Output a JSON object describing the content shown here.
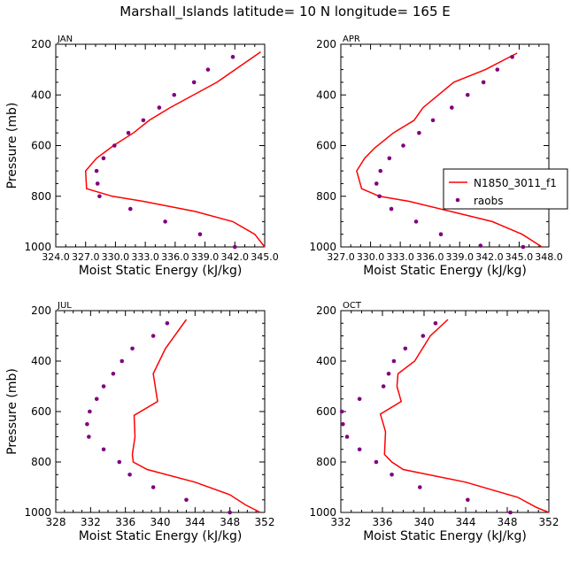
{
  "title": "Marshall_Islands  latitude= 10 N longitude= 165 E",
  "legend": {
    "model_label": "N1850_3011_f1",
    "obs_label": "raobs"
  },
  "colors": {
    "model": "#ff0000",
    "obs": "#800080",
    "axis": "#000000"
  },
  "chart_data": [
    {
      "type": "line",
      "panel": "JAN",
      "xlabel": "Moist Static Energy (kJ/kg)",
      "ylabel": "Pressure (mb)",
      "xlim": [
        324,
        345
      ],
      "ylim": [
        200,
        1000
      ],
      "xticks": [
        324,
        327,
        330,
        333,
        336,
        339,
        342,
        345
      ],
      "xtick_labels": [
        "324.0",
        "327.0",
        "330.0",
        "333.0",
        "336.0",
        "339.0",
        "342.0",
        "345.0"
      ],
      "yticks": [
        200,
        400,
        600,
        800,
        1000
      ],
      "ytick_labels": [
        "200",
        "400",
        "600",
        "800",
        "1000"
      ],
      "series": [
        {
          "name": "N1850_3011_f1",
          "kind": "line",
          "x": [
            344.6,
            340.2,
            335.5,
            333.4,
            331.8,
            329.8,
            328.1,
            327.0,
            327.1,
            329.7,
            332.8,
            338.0,
            341.8,
            344.0,
            345.0
          ],
          "y": [
            230,
            350,
            450,
            500,
            550,
            600,
            650,
            700,
            770,
            800,
            820,
            860,
            900,
            950,
            1000
          ]
        },
        {
          "name": "raobs",
          "kind": "scatter",
          "x": [
            341.8,
            339.3,
            337.9,
            335.9,
            334.4,
            332.8,
            331.3,
            329.9,
            328.8,
            328.1,
            328.2,
            328.4,
            331.5,
            335.0,
            338.5,
            342.0
          ],
          "y": [
            250,
            300,
            350,
            400,
            450,
            500,
            550,
            600,
            650,
            700,
            750,
            800,
            850,
            900,
            950,
            1000
          ]
        }
      ]
    },
    {
      "type": "line",
      "panel": "APR",
      "xlabel": "Moist Static Energy (kJ/kg)",
      "ylabel": "",
      "xlim": [
        327,
        348
      ],
      "ylim": [
        200,
        1000
      ],
      "xticks": [
        327,
        330,
        333,
        336,
        339,
        342,
        345,
        348
      ],
      "xtick_labels": [
        "327.0",
        "330.0",
        "333.0",
        "336.0",
        "339.0",
        "342.0",
        "345.0",
        "348.0"
      ],
      "yticks": [
        200,
        400,
        600,
        800,
        1000
      ],
      "ytick_labels": [
        "200",
        "400",
        "600",
        "800",
        "1000"
      ],
      "series": [
        {
          "name": "N1850_3011_f1",
          "kind": "line",
          "x": [
            344.8,
            341.6,
            338.4,
            335.3,
            334.4,
            332.3,
            330.4,
            329.4,
            328.6,
            329.1,
            330.9,
            333.9,
            338.1,
            342.3,
            345.3,
            347.3
          ],
          "y": [
            235,
            300,
            350,
            450,
            500,
            550,
            610,
            650,
            700,
            770,
            800,
            820,
            860,
            900,
            950,
            1000
          ]
        },
        {
          "name": "raobs",
          "kind": "scatter",
          "x": [
            344.3,
            342.8,
            341.4,
            339.8,
            338.2,
            336.3,
            334.9,
            333.3,
            331.9,
            331.0,
            330.6,
            330.9,
            332.1,
            334.6,
            337.1,
            341.1,
            345.4
          ],
          "y": [
            250,
            300,
            350,
            400,
            450,
            500,
            550,
            600,
            650,
            700,
            750,
            800,
            850,
            900,
            950,
            995,
            1000
          ]
        }
      ]
    },
    {
      "type": "line",
      "panel": "JUL",
      "xlabel": "Moist Static Energy (kJ/kg)",
      "ylabel": "Pressure (mb)",
      "xlim": [
        328,
        352
      ],
      "ylim": [
        200,
        1000
      ],
      "xticks": [
        328,
        332,
        336,
        340,
        344,
        348,
        352
      ],
      "xtick_labels": [
        "328",
        "332",
        "336",
        "340",
        "344",
        "348",
        "352"
      ],
      "yticks": [
        200,
        400,
        600,
        800,
        1000
      ],
      "ytick_labels": [
        "200",
        "400",
        "600",
        "800",
        "1000"
      ],
      "series": [
        {
          "name": "N1850_3011_f1",
          "kind": "line",
          "x": [
            343.0,
            340.6,
            339.2,
            339.7,
            337.0,
            337.1,
            336.8,
            336.9,
            338.5,
            344.0,
            348.0,
            349.8,
            351.5
          ],
          "y": [
            235,
            350,
            450,
            560,
            615,
            700,
            770,
            800,
            830,
            880,
            930,
            970,
            1000
          ]
        },
        {
          "name": "raobs",
          "kind": "scatter",
          "x": [
            340.8,
            339.2,
            336.8,
            335.6,
            334.6,
            333.5,
            332.7,
            331.9,
            331.6,
            331.8,
            333.5,
            335.3,
            336.5,
            339.2,
            343.0,
            348.0
          ],
          "y": [
            250,
            300,
            350,
            400,
            450,
            500,
            550,
            600,
            650,
            700,
            750,
            800,
            850,
            900,
            950,
            1000
          ]
        }
      ]
    },
    {
      "type": "line",
      "panel": "OCT",
      "xlabel": "Moist Static Energy (kJ/kg)",
      "ylabel": "",
      "xlim": [
        332,
        352
      ],
      "ylim": [
        200,
        1000
      ],
      "xticks": [
        332,
        336,
        340,
        344,
        348,
        352
      ],
      "xtick_labels": [
        "332",
        "336",
        "340",
        "344",
        "348",
        "352"
      ],
      "yticks": [
        200,
        400,
        600,
        800,
        1000
      ],
      "ytick_labels": [
        "200",
        "400",
        "600",
        "800",
        "1000"
      ],
      "series": [
        {
          "name": "N1850_3011_f1",
          "kind": "line",
          "x": [
            342.3,
            340.6,
            339.1,
            337.5,
            337.4,
            337.8,
            335.8,
            336.3,
            336.2,
            336.9,
            338.0,
            344.0,
            349.0,
            350.8,
            352.0
          ],
          "y": [
            235,
            300,
            400,
            450,
            500,
            560,
            610,
            680,
            770,
            800,
            830,
            880,
            940,
            980,
            1000
          ]
        },
        {
          "name": "raobs",
          "kind": "scatter",
          "x": [
            341.1,
            339.9,
            338.2,
            337.1,
            336.6,
            336.1,
            333.8,
            332.1,
            332.2,
            332.6,
            333.8,
            335.4,
            336.9,
            339.6,
            344.2,
            348.3
          ],
          "y": [
            250,
            300,
            350,
            400,
            450,
            500,
            550,
            600,
            650,
            700,
            750,
            800,
            850,
            900,
            950,
            1000
          ]
        }
      ]
    }
  ]
}
